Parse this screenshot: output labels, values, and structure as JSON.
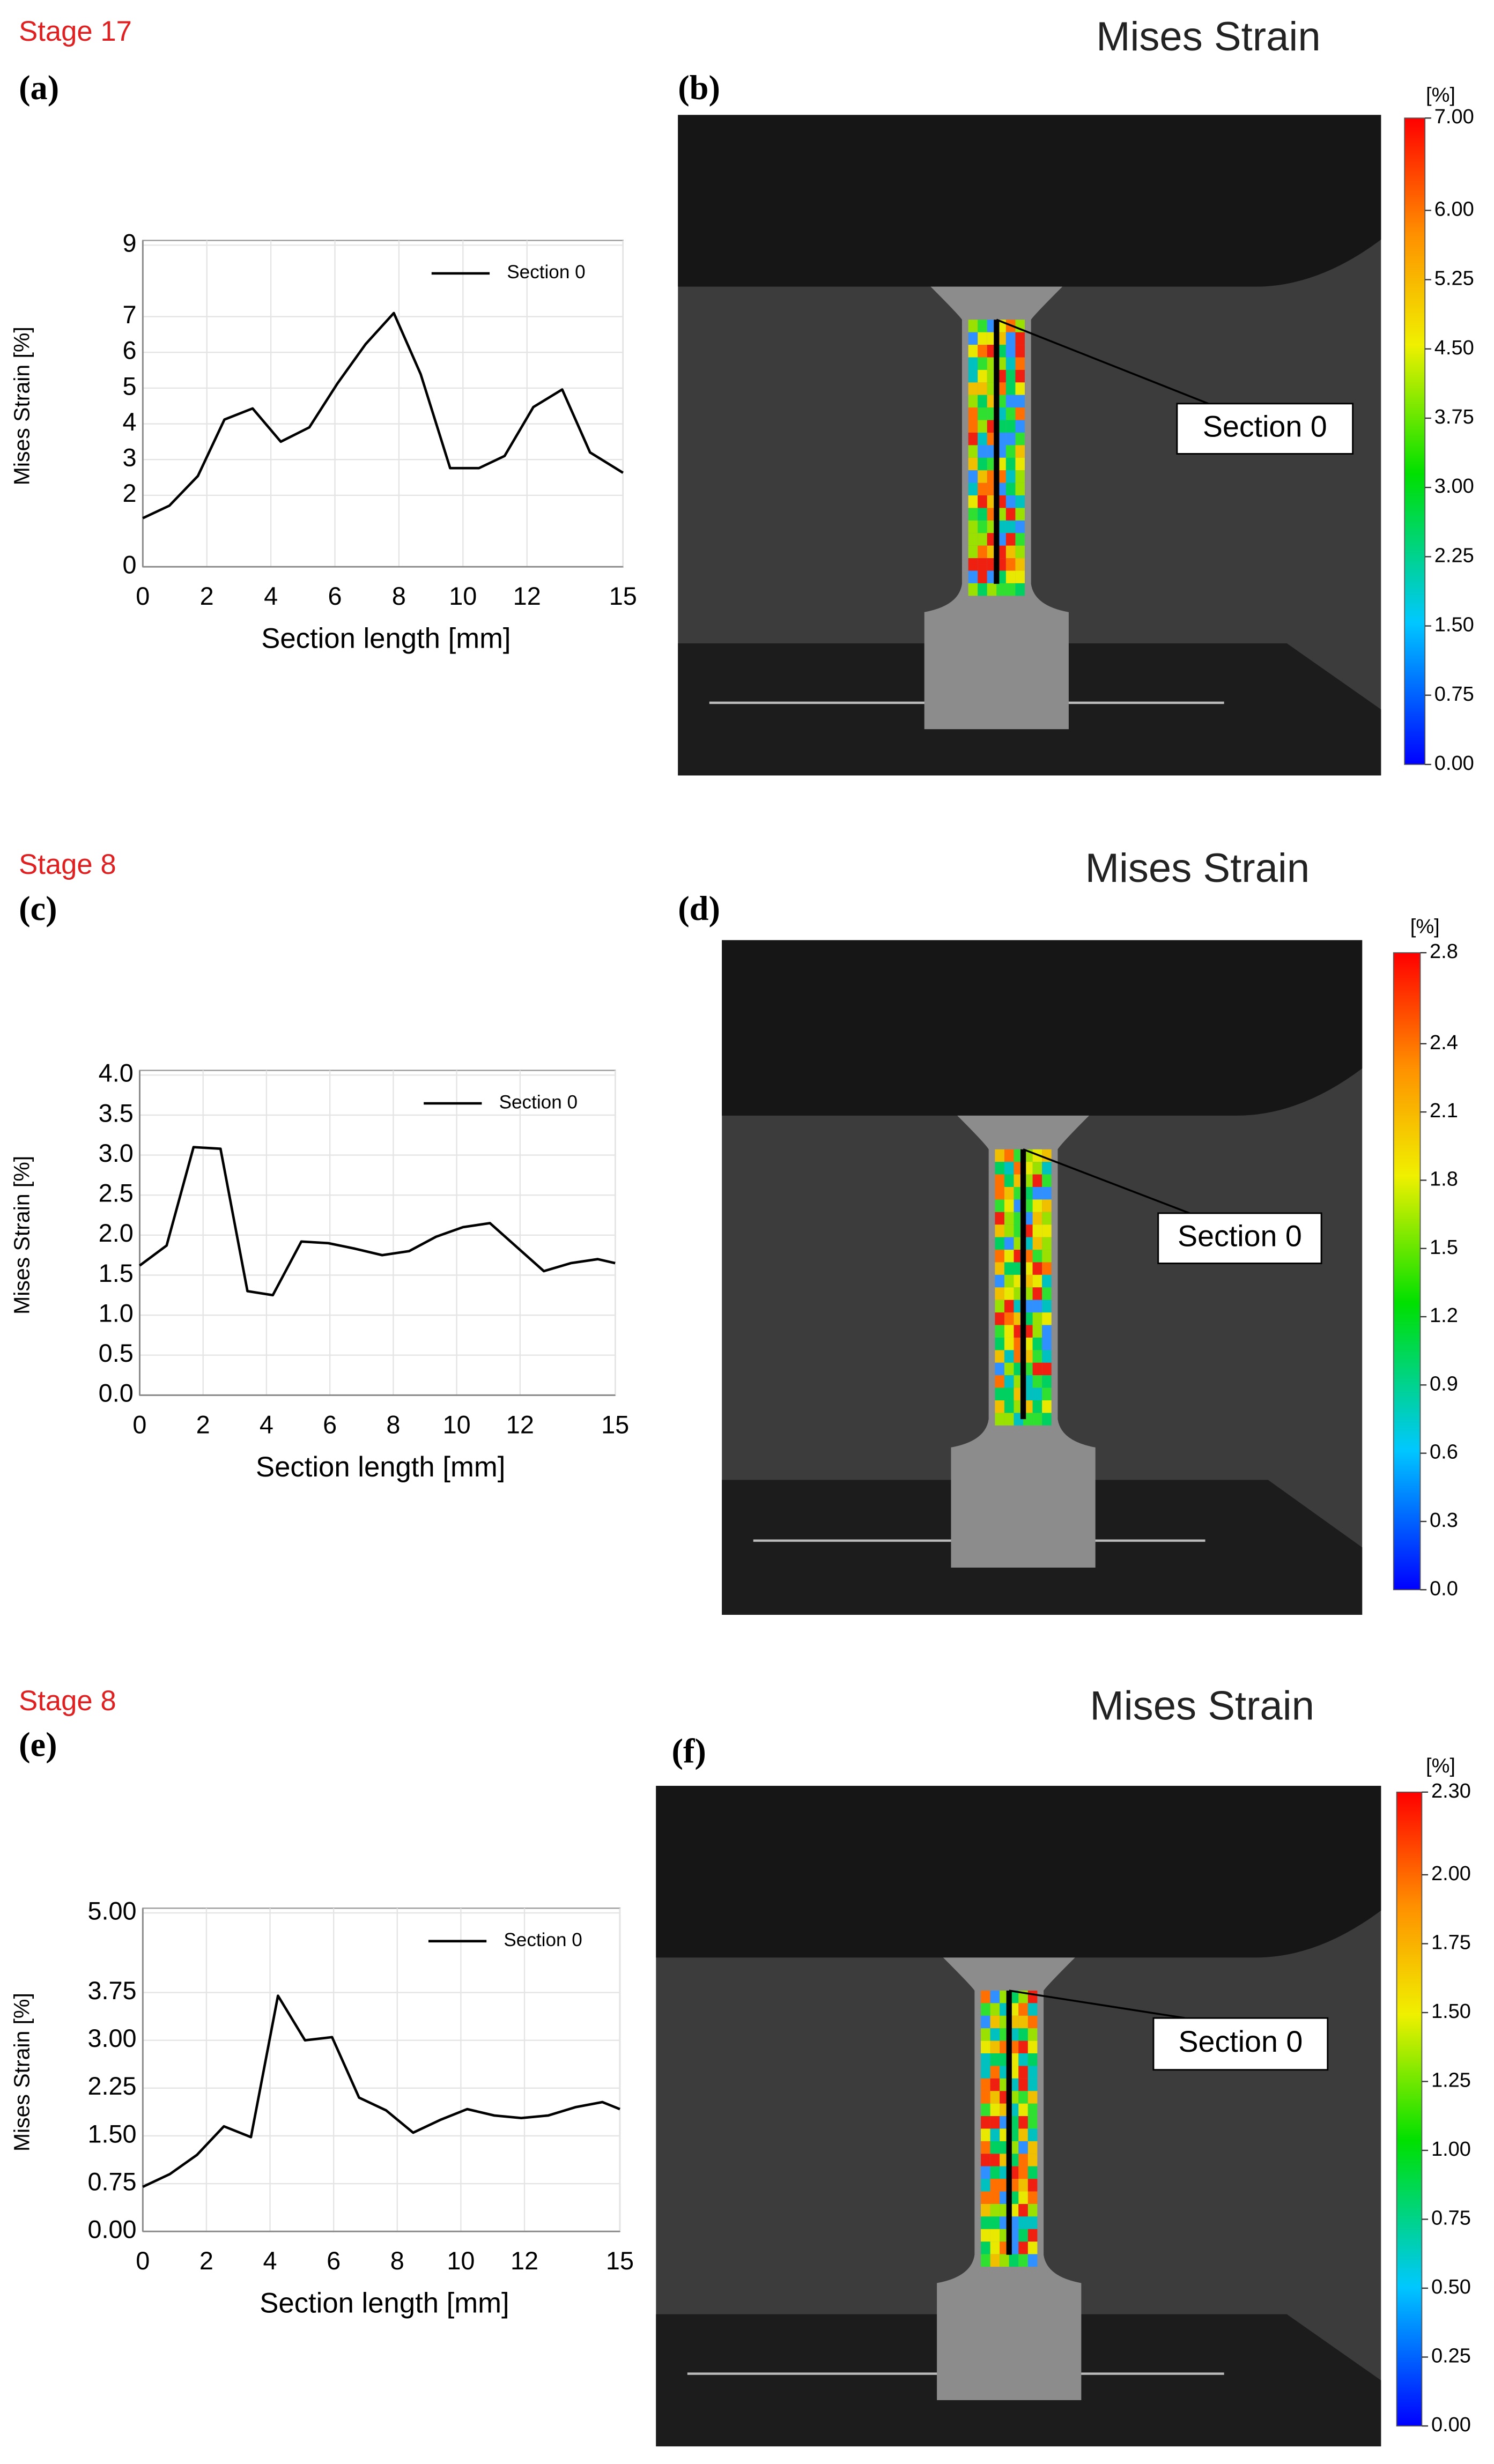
{
  "chart_data": [
    {
      "type": "line",
      "stage": "Stage 17",
      "panel_label": "(a)",
      "ylabel": "Mises Strain [%]",
      "xlabel": "Section length [mm]",
      "xlim": [
        0,
        15
      ],
      "ylim": [
        0,
        9
      ],
      "xticks": [
        0,
        2,
        4,
        6,
        8,
        10,
        12,
        15
      ],
      "yticks": [
        0,
        2,
        3,
        4,
        5,
        6,
        7,
        9
      ],
      "grid": true,
      "legend_position": "upper right",
      "x": [
        0,
        0.83,
        1.72,
        2.55,
        3.43,
        4.31,
        5.2,
        6.08,
        6.96,
        7.84,
        8.68,
        9.6,
        10.5,
        11.3,
        12.2,
        13.1,
        13.97,
        15
      ],
      "series": [
        {
          "name": "Section 0",
          "color": "#000000",
          "values": [
            1.36,
            1.71,
            2.54,
            4.12,
            4.43,
            3.5,
            3.9,
            5.13,
            6.23,
            7.1,
            5.39,
            2.76,
            2.76,
            3.1,
            4.47,
            4.96,
            3.2,
            2.63
          ]
        }
      ]
    },
    {
      "type": "line",
      "stage": "Stage 8",
      "panel_label": "(c)",
      "ylabel": "Mises Strain [%]",
      "xlabel": "Section length [mm]",
      "xlim": [
        0,
        15
      ],
      "ylim": [
        0,
        4
      ],
      "xticks": [
        0,
        2,
        4,
        6,
        8,
        10,
        12,
        15
      ],
      "yticks": [
        {
          "value": 0,
          "label": "0.0"
        },
        0.5,
        {
          "value": 1,
          "label": "1.0"
        },
        1.5,
        {
          "value": 2,
          "label": "2.0"
        },
        2.5,
        {
          "value": 3,
          "label": "3.0"
        },
        3.5,
        {
          "value": 4,
          "label": "4.0"
        }
      ],
      "grid": true,
      "legend_position": "upper right",
      "x": [
        0,
        0.85,
        1.7,
        2.55,
        3.4,
        4.2,
        5.1,
        5.95,
        6.8,
        7.65,
        8.5,
        9.35,
        10.2,
        11.05,
        11.9,
        12.75,
        13.6,
        14.45,
        15
      ],
      "series": [
        {
          "name": "Section 0",
          "color": "#000000",
          "values": [
            1.62,
            1.87,
            3.1,
            3.08,
            1.3,
            1.25,
            1.92,
            1.9,
            1.83,
            1.75,
            1.8,
            1.98,
            2.1,
            2.15,
            1.85,
            1.55,
            1.65,
            1.7,
            1.65
          ]
        }
      ]
    },
    {
      "type": "line",
      "stage": "Stage 8",
      "panel_label": "(e)",
      "ylabel": "Mises Strain [%]",
      "xlabel": "Section length [mm]",
      "xlim": [
        0,
        15
      ],
      "ylim": [
        0,
        5
      ],
      "xticks": [
        0,
        2,
        4,
        6,
        8,
        10,
        12,
        15
      ],
      "yticks": [
        {
          "value": 0,
          "label": "0.00"
        },
        0.75,
        {
          "value": 1.5,
          "label": "1.50"
        },
        2.25,
        {
          "value": 3,
          "label": "3.00"
        },
        3.75,
        {
          "value": 5,
          "label": "5.00"
        }
      ],
      "grid": true,
      "legend_position": "upper right",
      "x": [
        0,
        0.85,
        1.7,
        2.55,
        3.4,
        4.25,
        5.1,
        5.95,
        6.8,
        7.65,
        8.5,
        9.35,
        10.2,
        11.05,
        11.9,
        12.75,
        13.6,
        14.45,
        15
      ],
      "series": [
        {
          "name": "Section 0",
          "color": "#000000",
          "values": [
            0.7,
            0.9,
            1.2,
            1.65,
            1.48,
            3.7,
            3.0,
            3.05,
            2.1,
            1.9,
            1.55,
            1.75,
            1.92,
            1.82,
            1.78,
            1.82,
            1.95,
            2.03,
            1.92
          ]
        }
      ]
    }
  ],
  "images": [
    {
      "panel_label": "(b)",
      "title": "Mises Strain",
      "callout": "Section 0",
      "colorbar_unit": "[%]",
      "colorbar_ticks": [
        {
          "value": 7,
          "label": "7.00"
        },
        {
          "value": 6,
          "label": "6.00"
        },
        5.25,
        {
          "value": 4.5,
          "label": "4.50"
        },
        3.75,
        {
          "value": 3,
          "label": "3.00"
        },
        2.25,
        {
          "value": 1.5,
          "label": "1.50"
        },
        0.75,
        {
          "value": 0,
          "label": "0.00"
        }
      ]
    },
    {
      "panel_label": "(d)",
      "title": "Mises Strain",
      "callout": "Section 0",
      "colorbar_unit": "[%]",
      "colorbar_ticks": [
        2.8,
        2.4,
        2.1,
        1.8,
        1.5,
        1.2,
        0.9,
        0.6,
        0.3,
        {
          "value": 0,
          "label": "0.0"
        }
      ]
    },
    {
      "panel_label": "(f)",
      "title": "Mises Strain",
      "callout": "Section 0",
      "colorbar_unit": "[%]",
      "colorbar_ticks": [
        {
          "value": 2.3,
          "label": "2.30"
        },
        {
          "value": 2,
          "label": "2.00"
        },
        1.75,
        {
          "value": 1.5,
          "label": "1.50"
        },
        1.25,
        {
          "value": 1,
          "label": "1.00"
        },
        0.75,
        {
          "value": 0.5,
          "label": "0.50"
        },
        0.25,
        {
          "value": 0,
          "label": "0.00"
        }
      ]
    }
  ]
}
